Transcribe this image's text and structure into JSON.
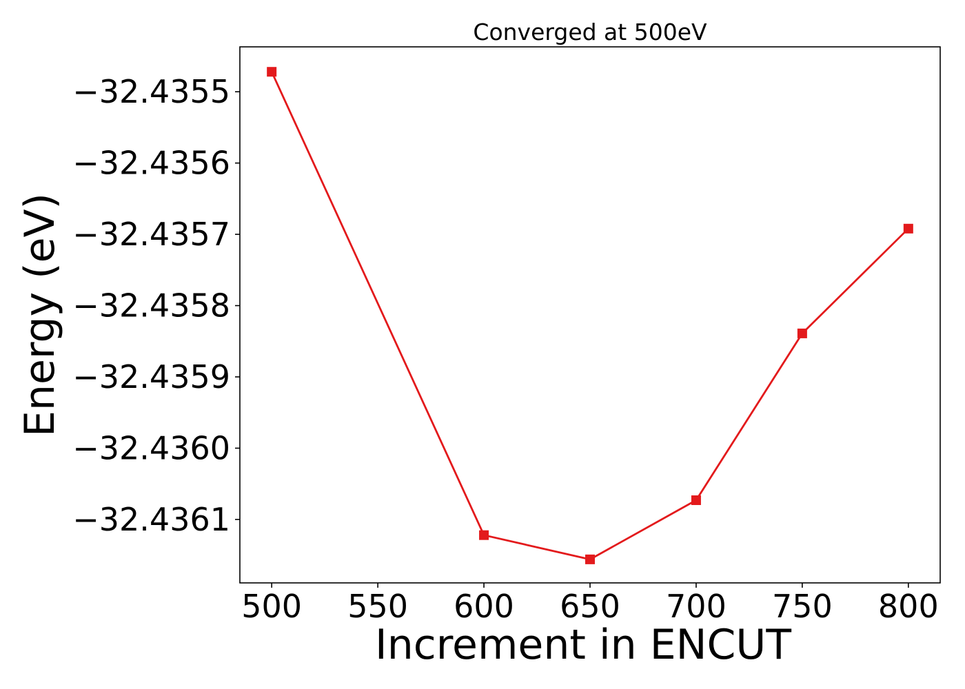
{
  "chart_data": {
    "type": "line",
    "title": "Converged at 500eV",
    "xlabel": "Increment in ENCUT",
    "ylabel": "Energy (eV)",
    "x": [
      500,
      600,
      650,
      700,
      750,
      800
    ],
    "series": [
      {
        "values": [
          -32.435472,
          -32.436122,
          -32.436156,
          -32.436073,
          -32.435839,
          -32.435692
        ],
        "color": "#e31a1c",
        "marker": "square"
      }
    ],
    "xticks": [
      500,
      550,
      600,
      650,
      700,
      750,
      800
    ],
    "xtick_labels": [
      "500",
      "550",
      "600",
      "650",
      "700",
      "750",
      "800"
    ],
    "yticks": [
      -32.4355,
      -32.4356,
      -32.4357,
      -32.4358,
      -32.4359,
      -32.436,
      -32.4361
    ],
    "ytick_labels": [
      "−32.4355",
      "−32.4356",
      "−32.4357",
      "−32.4358",
      "−32.4359",
      "−32.4360",
      "−32.4361"
    ],
    "xlim": [
      485,
      815
    ],
    "ylim": [
      -32.436189,
      -32.435437
    ],
    "grid": false,
    "legend": "none"
  }
}
